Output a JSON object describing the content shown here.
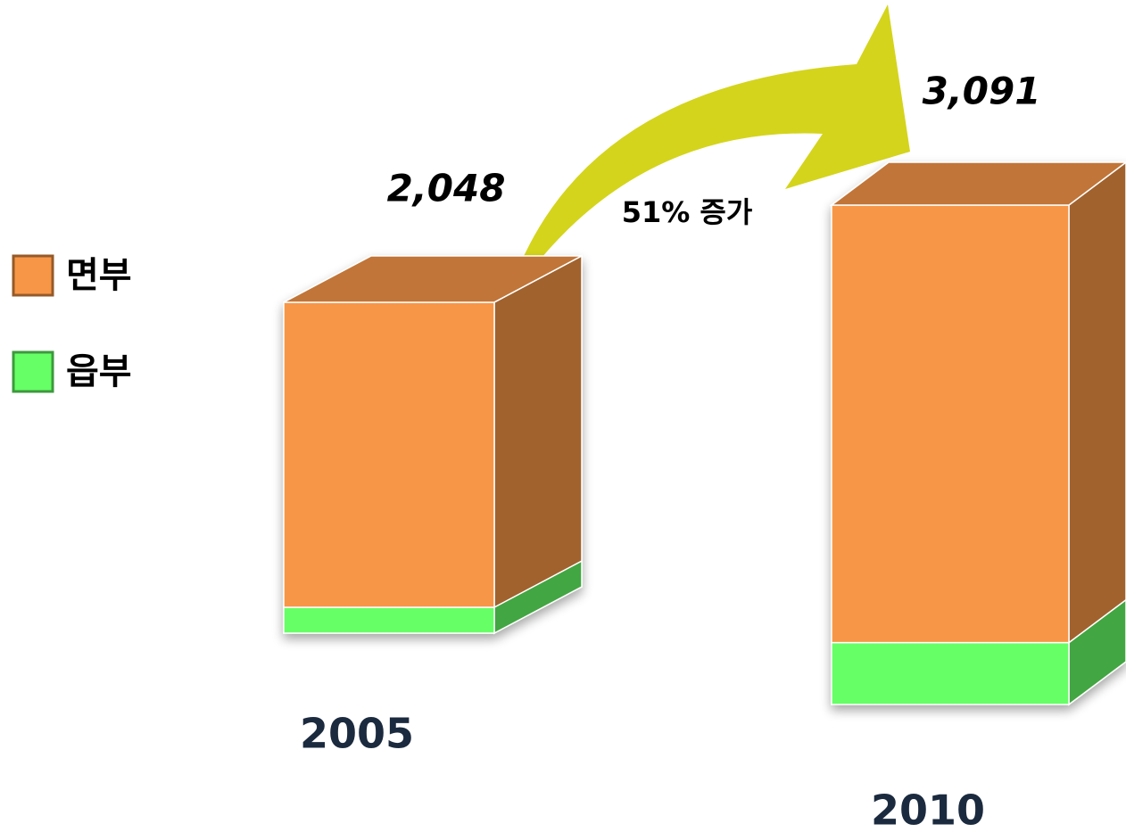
{
  "chart_data": {
    "type": "bar3d_stacked",
    "categories": [
      "2005",
      "2010"
    ],
    "series": [
      {
        "name": "읍부",
        "color": "#66ff66",
        "values": [
          160,
          383
        ]
      },
      {
        "name": "면부",
        "color": "#f79646",
        "values": [
          1888,
          2708
        ]
      }
    ],
    "totals": [
      2048,
      3091
    ],
    "total_labels": [
      "2,048",
      "3,091"
    ],
    "annotation": "51% 증가"
  }
}
